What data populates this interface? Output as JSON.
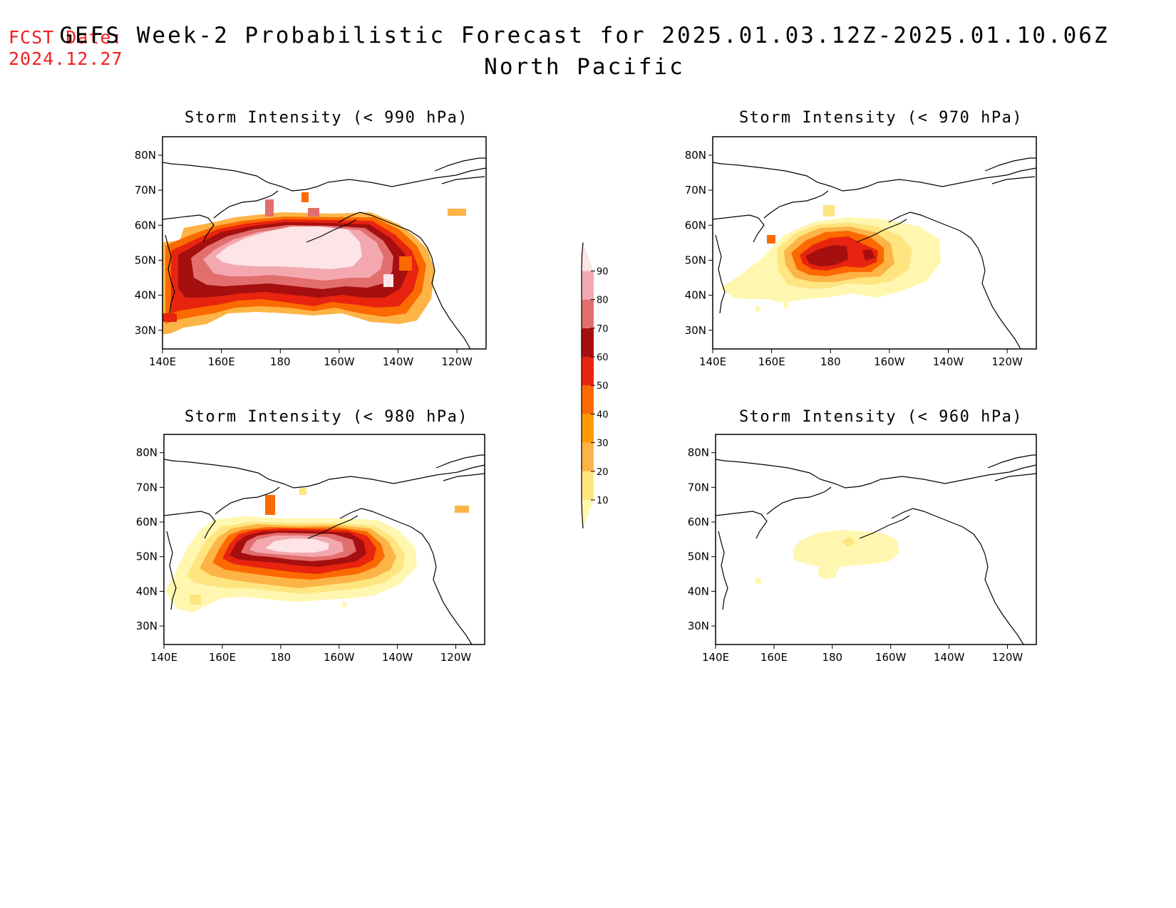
{
  "fcst_label": "FCST Date:",
  "fcst_date": "2024.12.27",
  "title": "GEFS Week-2 Probabilistic Forecast for 2025.01.03.12Z-2025.01.10.06Z",
  "subtitle": "North Pacific",
  "x_ticks": [
    "140E",
    "160E",
    "180",
    "160W",
    "140W",
    "120W"
  ],
  "y_ticks": [
    "80N",
    "70N",
    "60N",
    "50N",
    "40N",
    "30N"
  ],
  "colorbar": {
    "levels": [
      "10",
      "20",
      "30",
      "40",
      "50",
      "60",
      "70",
      "80",
      "90"
    ],
    "colors": [
      "#fff7b0",
      "#fee580",
      "#fdb446",
      "#fd9a00",
      "#fb6a00",
      "#e8230f",
      "#a50f0f",
      "#e36e6e",
      "#f2a8ae",
      "#fde4e6"
    ]
  },
  "panels": [
    {
      "id": "p990",
      "title": "Storm Intensity (< 990 hPa)",
      "threshold_hpa": 990
    },
    {
      "id": "p970",
      "title": "Storm Intensity (< 970 hPa)",
      "threshold_hpa": 970
    },
    {
      "id": "p980",
      "title": "Storm Intensity (< 980 hPa)",
      "threshold_hpa": 980
    },
    {
      "id": "p960",
      "title": "Storm Intensity (< 960 hPa)",
      "threshold_hpa": 960
    }
  ]
}
